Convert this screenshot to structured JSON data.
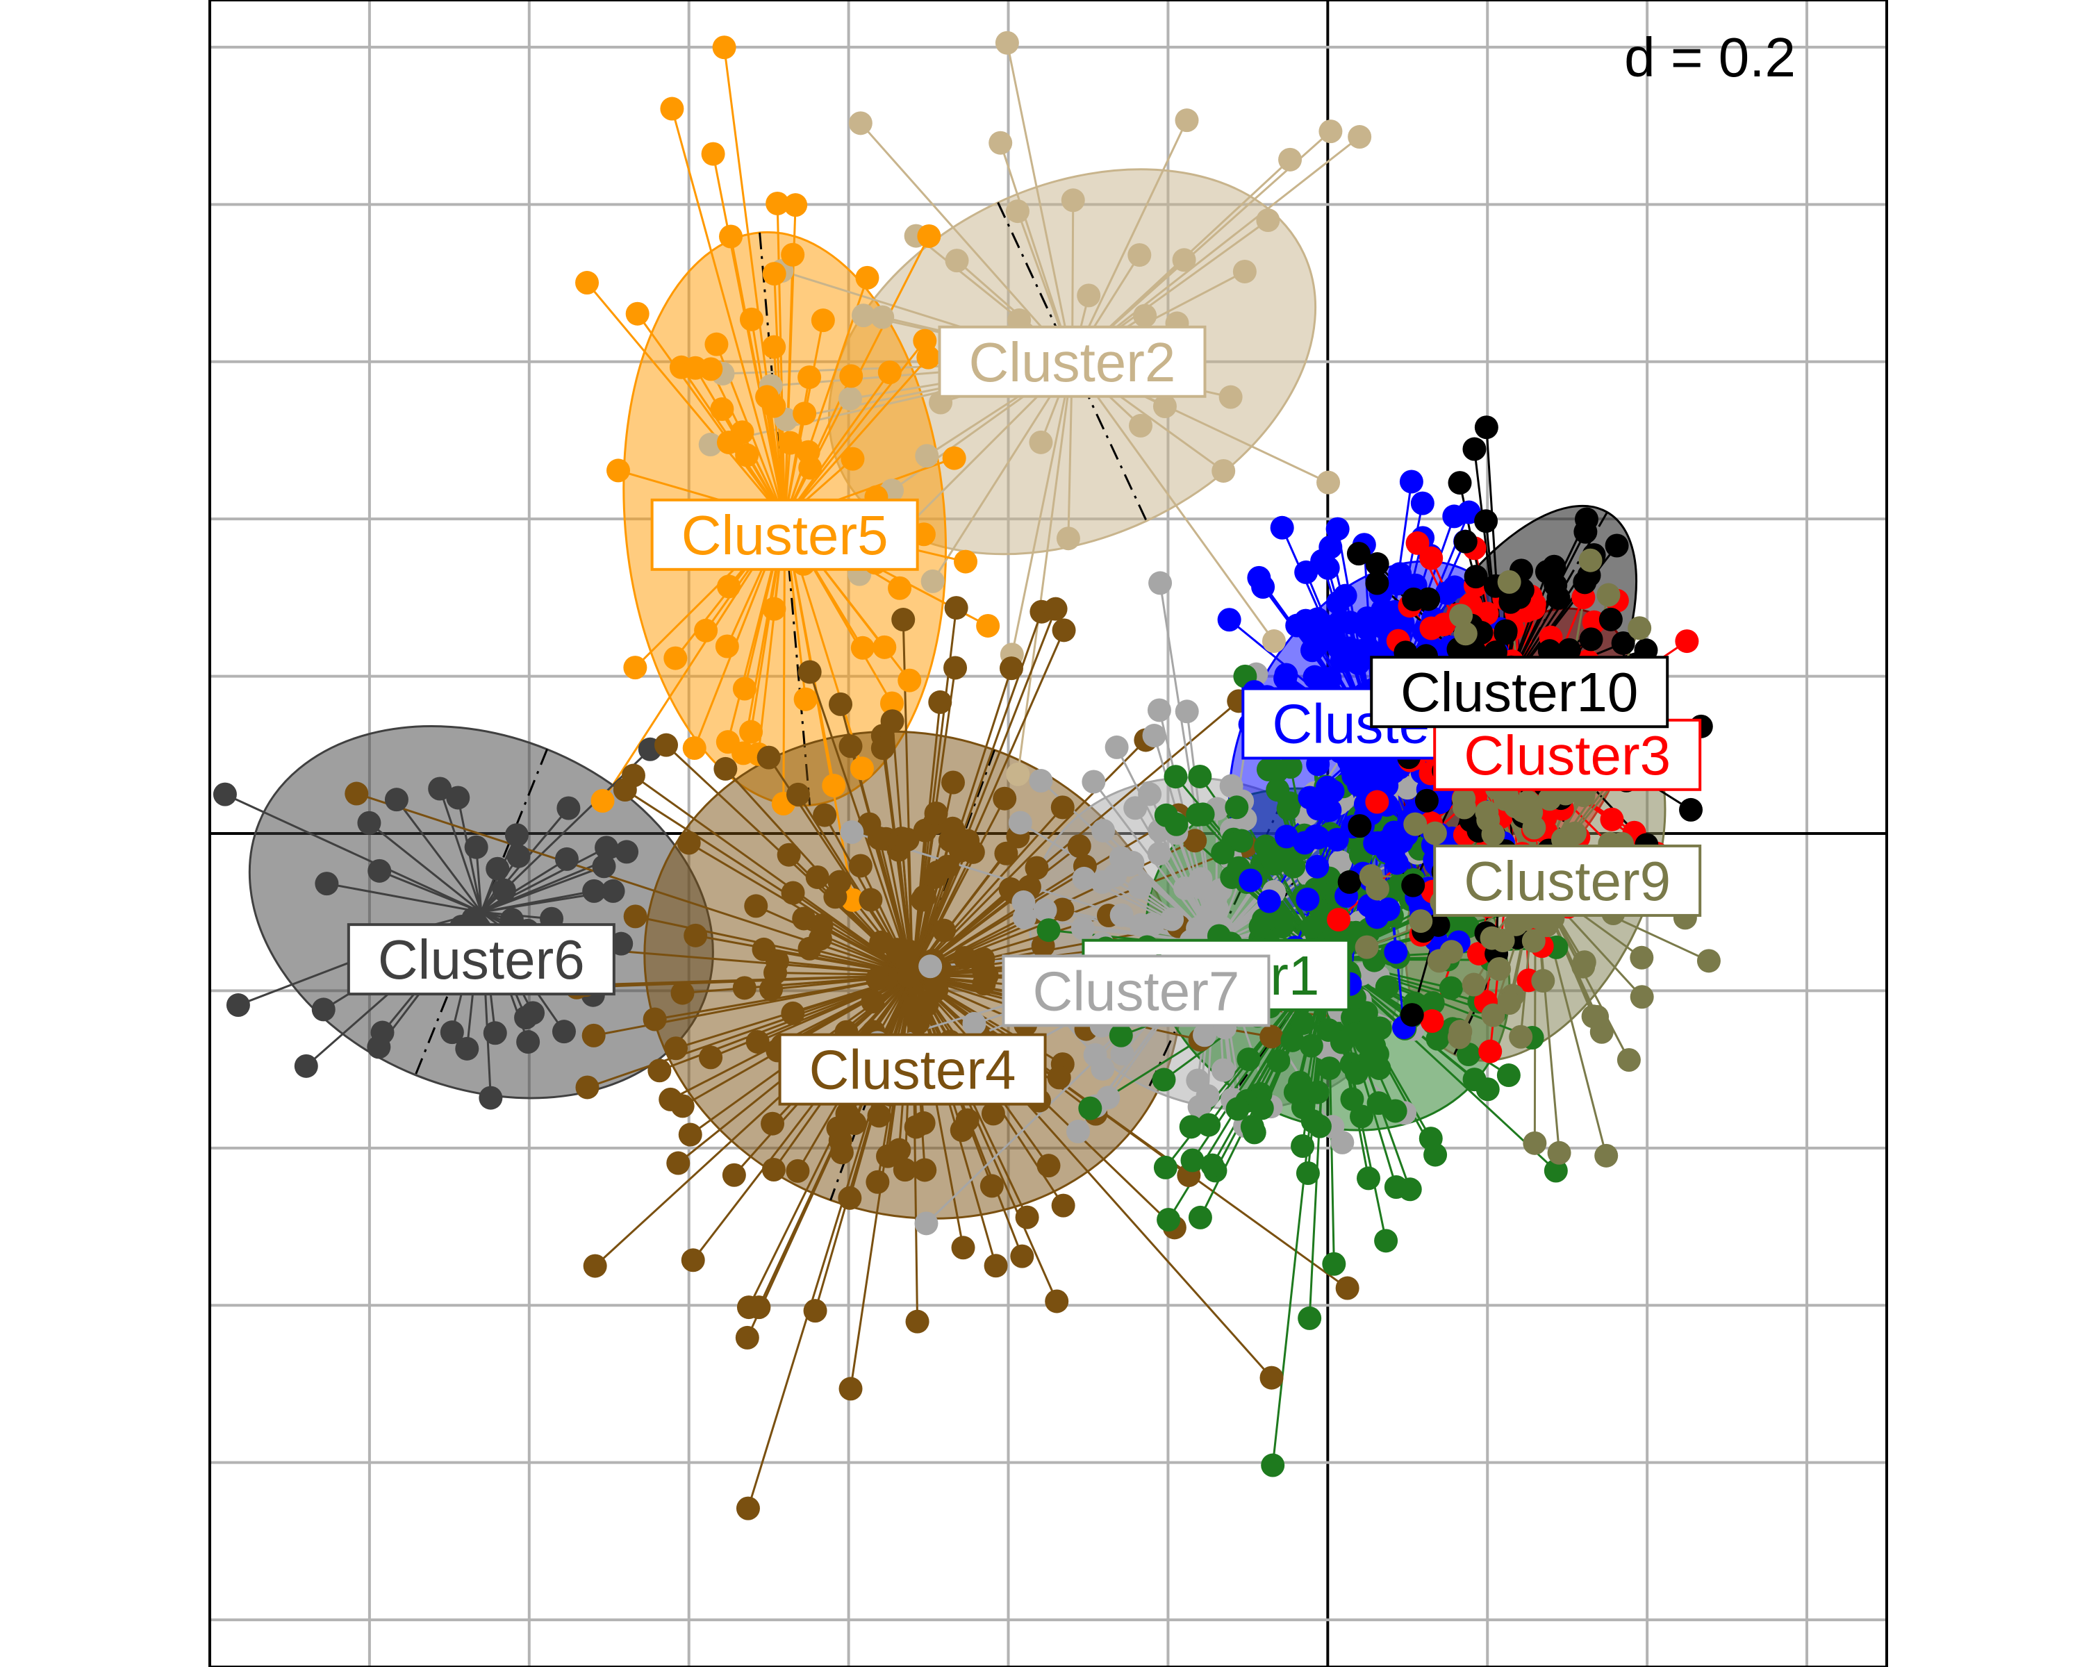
{
  "chart_data": {
    "type": "scatter",
    "title": "",
    "xlabel": "",
    "ylabel": "",
    "xlim": [
      -0.7,
      0.35
    ],
    "ylim": [
      -0.53,
      0.53
    ],
    "grid_step": 0.2,
    "grid": true,
    "scale_label": "d = 0.2",
    "series": [
      {
        "name": "Cluster2",
        "color": "#c8b48c",
        "center": [
          -0.16,
          0.3
        ],
        "spread": [
          0.11,
          0.1
        ],
        "n": 45,
        "ellipse": {
          "rx": 0.16,
          "ry": 0.11,
          "angle": -25
        }
      },
      {
        "name": "Cluster5",
        "color": "#ff9900",
        "center": [
          -0.34,
          0.2
        ],
        "spread": [
          0.06,
          0.12
        ],
        "n": 70,
        "ellipse": {
          "rx": 0.1,
          "ry": 0.18,
          "angle": -5
        }
      },
      {
        "name": "Cluster6",
        "color": "#404040",
        "center": [
          -0.53,
          -0.05
        ],
        "spread": [
          0.07,
          0.07
        ],
        "n": 45,
        "ellipse": {
          "rx": 0.15,
          "ry": 0.11,
          "angle": 22
        }
      },
      {
        "name": "Cluster4",
        "color": "#7a5010",
        "center": [
          -0.26,
          -0.09
        ],
        "spread": [
          0.1,
          0.1
        ],
        "n": 200,
        "ellipse": {
          "rx": 0.17,
          "ry": 0.15,
          "angle": 20
        }
      },
      {
        "name": "Cluster7",
        "color": "#a6a6a6",
        "center": [
          -0.07,
          -0.07
        ],
        "spread": [
          0.08,
          0.07
        ],
        "n": 130,
        "ellipse": {
          "rx": 0.12,
          "ry": 0.1,
          "angle": 25
        }
      },
      {
        "name": "Cluster1",
        "color": "#1e7a1e",
        "center": [
          0.0,
          -0.08
        ],
        "spread": [
          0.06,
          0.08
        ],
        "n": 220,
        "ellipse": {
          "rx": 0.12,
          "ry": 0.1,
          "angle": 35
        }
      },
      {
        "name": "Cluster8",
        "color": "#0000ff",
        "center": [
          0.03,
          0.06
        ],
        "spread": [
          0.035,
          0.07
        ],
        "n": 230,
        "ellipse": {
          "rx": 0.08,
          "ry": 0.12,
          "angle": 30
        }
      },
      {
        "name": "Cluster3",
        "color": "#ff0000",
        "center": [
          0.12,
          0.05
        ],
        "spread": [
          0.04,
          0.06
        ],
        "n": 140,
        "ellipse": {
          "rx": 0.06,
          "ry": 0.1,
          "angle": 30
        }
      },
      {
        "name": "Cluster10",
        "color": "#000000",
        "center": [
          0.11,
          0.09
        ],
        "spread": [
          0.045,
          0.07
        ],
        "n": 110,
        "ellipse": {
          "rx": 0.06,
          "ry": 0.13,
          "angle": 30
        }
      },
      {
        "name": "Cluster9",
        "color": "#7a7a4a",
        "center": [
          0.13,
          -0.03
        ],
        "spread": [
          0.04,
          0.07
        ],
        "n": 110,
        "ellipse": {
          "rx": 0.07,
          "ry": 0.12,
          "angle": 25
        }
      }
    ],
    "labels": [
      {
        "name": "Cluster2",
        "color": "#c8b48c",
        "pos": [
          -0.16,
          0.3
        ]
      },
      {
        "name": "Cluster5",
        "color": "#ff9900",
        "pos": [
          -0.34,
          0.19
        ]
      },
      {
        "name": "Cluster6",
        "color": "#404040",
        "pos": [
          -0.53,
          -0.08
        ]
      },
      {
        "name": "Cluster4",
        "color": "#7a5010",
        "pos": [
          -0.26,
          -0.15
        ]
      },
      {
        "name": "Cluster1",
        "color": "#1e7a1e",
        "pos": [
          -0.07,
          -0.09
        ]
      },
      {
        "name": "Cluster7",
        "color": "#a6a6a6",
        "pos": [
          -0.12,
          -0.1
        ]
      },
      {
        "name": "Cluster8",
        "color": "#0000ff",
        "pos": [
          0.03,
          0.07
        ]
      },
      {
        "name": "Cluster3",
        "color": "#ff0000",
        "pos": [
          0.15,
          0.05
        ]
      },
      {
        "name": "Cluster10",
        "color": "#000000",
        "pos": [
          0.12,
          0.09
        ]
      },
      {
        "name": "Cluster9",
        "color": "#7a7a4a",
        "pos": [
          0.15,
          -0.03
        ]
      }
    ]
  }
}
